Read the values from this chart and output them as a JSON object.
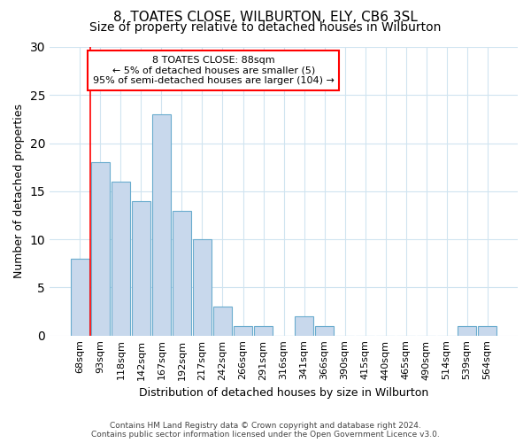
{
  "title1": "8, TOATES CLOSE, WILBURTON, ELY, CB6 3SL",
  "title2": "Size of property relative to detached houses in Wilburton",
  "xlabel": "Distribution of detached houses by size in Wilburton",
  "ylabel": "Number of detached properties",
  "categories": [
    "68sqm",
    "93sqm",
    "118sqm",
    "142sqm",
    "167sqm",
    "192sqm",
    "217sqm",
    "242sqm",
    "266sqm",
    "291sqm",
    "316sqm",
    "341sqm",
    "366sqm",
    "390sqm",
    "415sqm",
    "440sqm",
    "465sqm",
    "490sqm",
    "514sqm",
    "539sqm",
    "564sqm"
  ],
  "values": [
    8,
    18,
    16,
    14,
    23,
    13,
    10,
    3,
    1,
    1,
    0,
    2,
    1,
    0,
    0,
    0,
    0,
    0,
    0,
    1,
    1
  ],
  "bar_color": "#c8d8ec",
  "bar_edge_color": "#6aacce",
  "ylim": [
    0,
    30
  ],
  "yticks": [
    0,
    5,
    10,
    15,
    20,
    25,
    30
  ],
  "annotation_title": "8 TOATES CLOSE: 88sqm",
  "annotation_line1": "← 5% of detached houses are smaller (5)",
  "annotation_line2": "95% of semi-detached houses are larger (104) →",
  "vline_x_index": 1,
  "footer1": "Contains HM Land Registry data © Crown copyright and database right 2024.",
  "footer2": "Contains public sector information licensed under the Open Government Licence v3.0.",
  "background_color": "#ffffff",
  "grid_color": "#d0e4f0",
  "title1_fontsize": 11,
  "title2_fontsize": 10,
  "ylabel_fontsize": 9,
  "xlabel_fontsize": 9,
  "tick_fontsize": 8
}
